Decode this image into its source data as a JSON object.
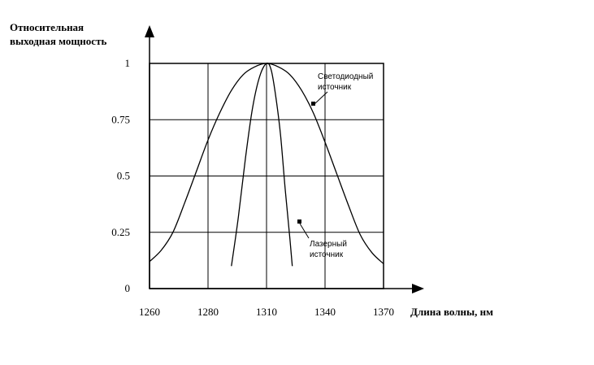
{
  "chart_data": {
    "type": "line",
    "title": "",
    "ylabel_lines": [
      "Относительная",
      "выходная мощность"
    ],
    "xlabel": "Длина волны, нм",
    "x_tick_labels": [
      "1260",
      "1280",
      "1310",
      "1340",
      "1370"
    ],
    "y_ticks": [
      0,
      0.25,
      0.5,
      0.75,
      1
    ],
    "y_tick_labels": [
      "0",
      "0.25",
      "0.5",
      "0.75",
      "1"
    ],
    "ylim": [
      0,
      1
    ],
    "grid": true,
    "series": [
      {
        "name": "Светодиодный источник",
        "label_lines": [
          "Светодиодный",
          "источник"
        ],
        "points": [
          [
            0.0,
            0.12
          ],
          [
            0.05,
            0.17
          ],
          [
            0.1,
            0.25
          ],
          [
            0.15,
            0.38
          ],
          [
            0.2,
            0.52
          ],
          [
            0.25,
            0.66
          ],
          [
            0.3,
            0.78
          ],
          [
            0.35,
            0.88
          ],
          [
            0.4,
            0.95
          ],
          [
            0.45,
            0.985
          ],
          [
            0.5,
            1.0
          ],
          [
            0.55,
            0.985
          ],
          [
            0.6,
            0.95
          ],
          [
            0.65,
            0.88
          ],
          [
            0.7,
            0.78
          ],
          [
            0.75,
            0.65
          ],
          [
            0.8,
            0.51
          ],
          [
            0.85,
            0.37
          ],
          [
            0.9,
            0.24
          ],
          [
            0.95,
            0.16
          ],
          [
            1.0,
            0.11
          ]
        ]
      },
      {
        "name": "Лазерный источник",
        "label_lines": [
          "Лазерный",
          "источник"
        ],
        "points": [
          [
            0.35,
            0.1
          ],
          [
            0.38,
            0.32
          ],
          [
            0.41,
            0.58
          ],
          [
            0.44,
            0.8
          ],
          [
            0.47,
            0.94
          ],
          [
            0.5,
            1.0
          ],
          [
            0.52,
            0.97
          ],
          [
            0.54,
            0.85
          ],
          [
            0.56,
            0.68
          ],
          [
            0.58,
            0.44
          ],
          [
            0.6,
            0.22
          ],
          [
            0.61,
            0.1
          ]
        ]
      }
    ]
  }
}
